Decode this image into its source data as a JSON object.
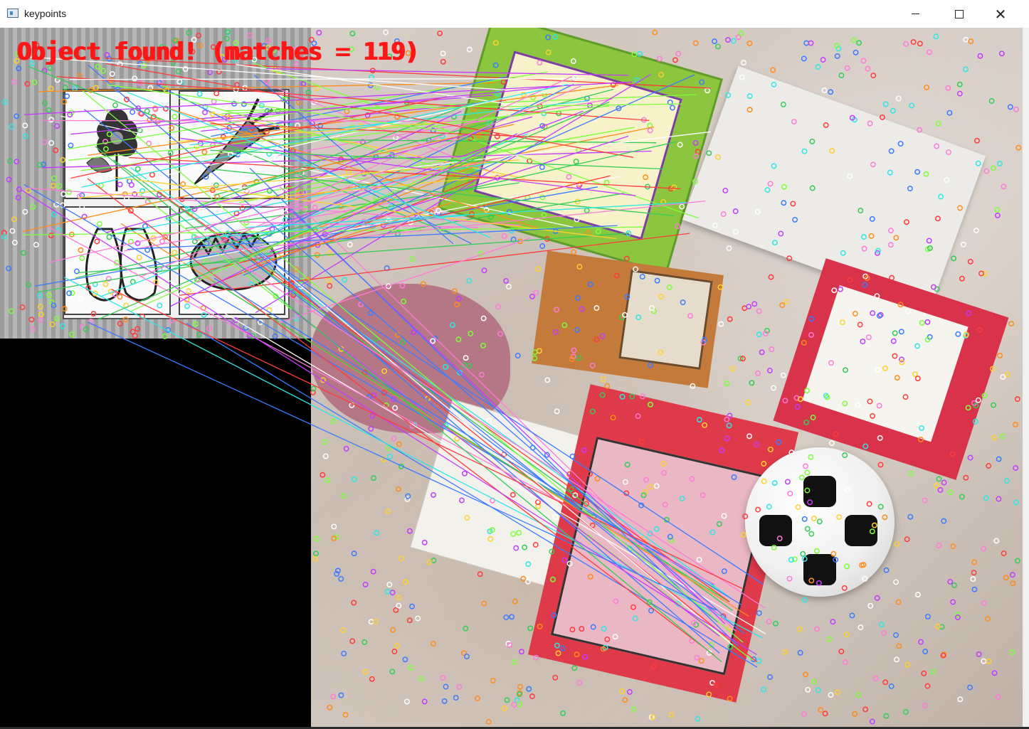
{
  "window": {
    "title": "keypoints",
    "controls": {
      "minimize": "minimize",
      "maximize": "maximize",
      "close": "close"
    }
  },
  "overlay": {
    "status_text": "Object found! (matches = 119)",
    "status_color": "#ff1616",
    "matches": 119
  },
  "colors": {
    "template_background": "#000000",
    "keypoint_palette": [
      "#ff3b3b",
      "#3b7bff",
      "#33cc55",
      "#ffd12e",
      "#c43bff",
      "#ff7ad9",
      "#2ee6e6",
      "#ff8c1a",
      "#7cff3b",
      "#ffffff"
    ]
  },
  "icons": {
    "app": "opencv-window-icon",
    "minimize": "minimize-icon",
    "maximize": "maximize-icon",
    "close": "close-icon"
  }
}
